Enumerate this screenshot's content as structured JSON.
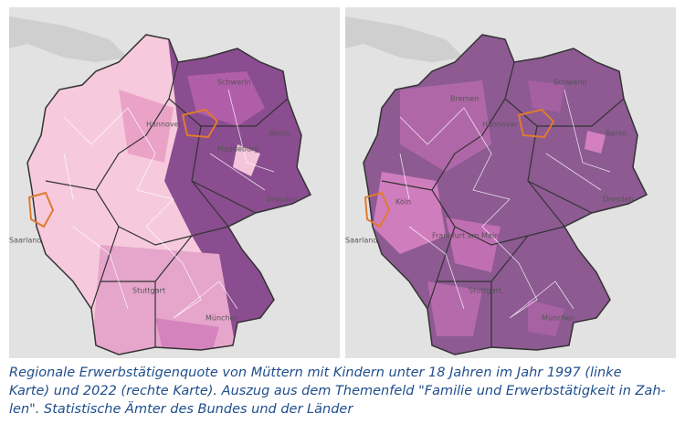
{
  "maps": [
    {
      "labels": [
        "Schwerin",
        "Hannover",
        "Magdeburg",
        "Berlin",
        "Dresden",
        "Stuttgart",
        "München",
        "Saarland"
      ]
    },
    {
      "labels": [
        "Schwerin",
        "Bremen",
        "Hannover",
        "Berlin",
        "Köln",
        "Frankfurt am Main",
        "Dresden",
        "Stuttgart",
        "München",
        "Saarland"
      ]
    }
  ],
  "caption": {
    "lines": [
      "Regionale Erwerbstätigenquote von Müttern mit Kindern unter 18 Jahren im Jahr 1997 (linke",
      "Karte) und 2022 (rechte Karte). Auszug aus dem Themenfeld \"Familie und Erwerbstätigkeit in Zah-",
      "len\". Statistische Ämter des Bundes und der Länder"
    ]
  }
}
